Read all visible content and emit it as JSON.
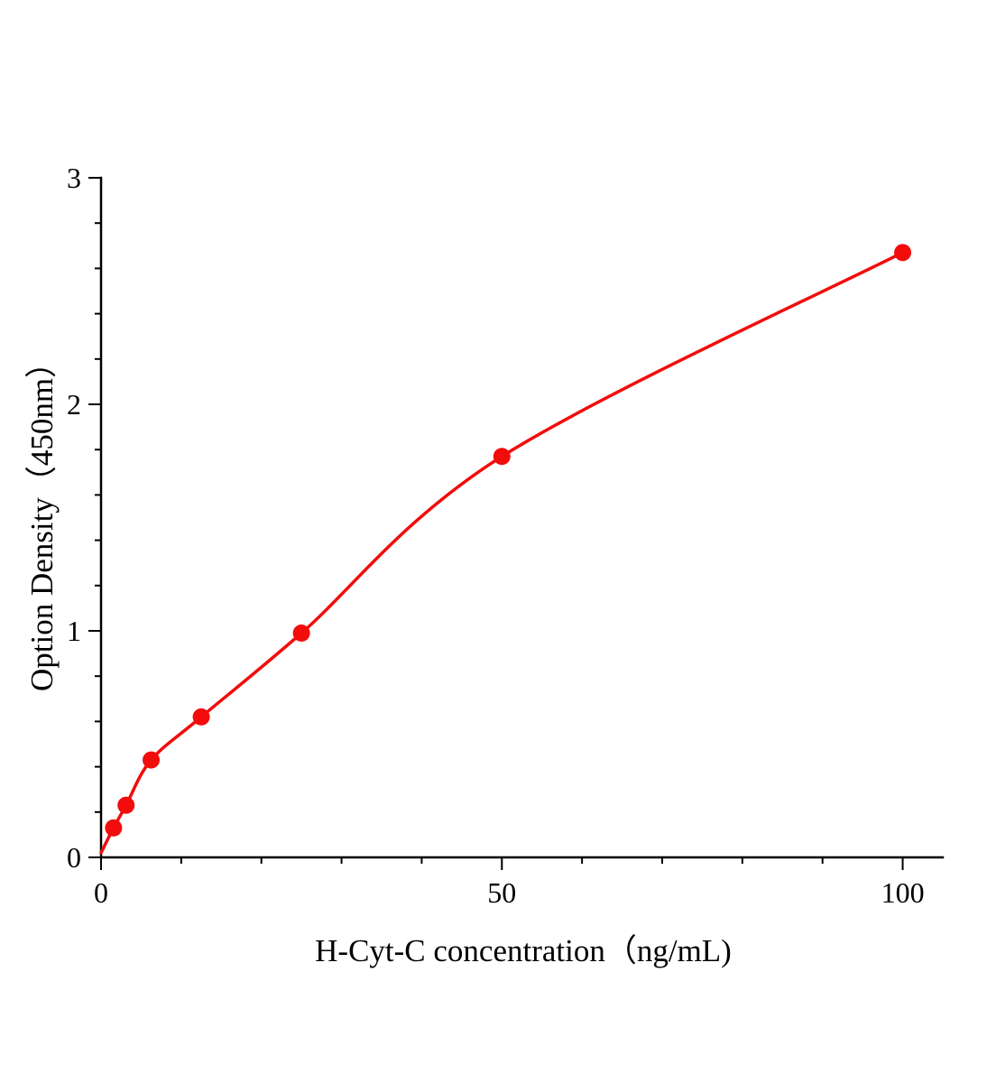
{
  "figure": {
    "background": "#ffffff"
  },
  "chart_data": {
    "type": "scatter",
    "title": "",
    "xlabel": "H-Cyt-C concentration（ng/mL)",
    "ylabel": "Option Density（450nm）",
    "x": [
      1.56,
      3.12,
      6.25,
      12.5,
      25,
      50,
      100
    ],
    "y": [
      0.13,
      0.23,
      0.43,
      0.62,
      0.99,
      1.77,
      2.67
    ],
    "curve_start": [
      0,
      0.02
    ],
    "xlim": [
      0,
      105
    ],
    "ylim": [
      0,
      3
    ],
    "x_major_ticks": [
      0,
      50,
      100
    ],
    "x_tick_labels": [
      "0",
      "50",
      "100"
    ],
    "x_minor_step": 10,
    "y_major_ticks": [
      0,
      1,
      2,
      3
    ],
    "y_tick_labels": [
      "0",
      "1",
      "2",
      "3"
    ],
    "y_minor_step": 0.2,
    "grid": false,
    "legend": "none",
    "marker_color": "#f20c0c",
    "line_color": "#f20c0c",
    "marker_radius": 9.5,
    "line_width": 3.5
  }
}
